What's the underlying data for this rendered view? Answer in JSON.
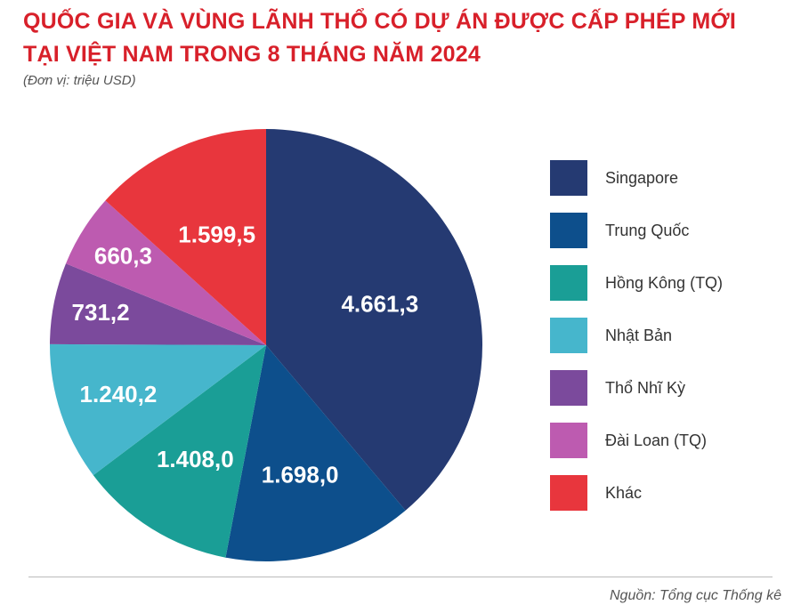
{
  "title": {
    "line1": "QUỐC GIA VÀ VÙNG LÃNH THỔ CÓ DỰ ÁN ĐƯỢC CẤP PHÉP MỚI",
    "line2": "TẠI VIỆT NAM TRONG 8 THÁNG NĂM 2024"
  },
  "unit": "(Đơn vị: triệu USD)",
  "source": "Nguồn: Tổng cục Thống kê",
  "chart_data": {
    "type": "pie",
    "title": "QUỐC GIA VÀ VÙNG LÃNH THỔ CÓ DỰ ÁN ĐƯỢC CẤP PHÉP MỚI TẠI VIỆT NAM TRONG 8 THÁNG NĂM 2024",
    "unit": "(Đơn vị: triệu USD)",
    "legend_position": "right",
    "start": "top, clockwise",
    "slices": [
      {
        "label": "Singapore",
        "value": 4661.3,
        "display": "4.661,3",
        "color": "#253a72"
      },
      {
        "label": "Trung Quốc",
        "value": 1698.0,
        "display": "1.698,0",
        "color": "#0d4f8c"
      },
      {
        "label": "Hồng Kông (TQ)",
        "value": 1408.0,
        "display": "1.408,0",
        "color": "#1a9e96"
      },
      {
        "label": "Nhật Bản",
        "value": 1240.2,
        "display": "1.240,2",
        "color": "#46b6cc"
      },
      {
        "label": "Thổ Nhĩ Kỳ",
        "value": 731.2,
        "display": "731,2",
        "color": "#7b4a9c"
      },
      {
        "label": "Đài Loan (TQ)",
        "value": 660.3,
        "display": "660,3",
        "color": "#bd5bb0"
      },
      {
        "label": "Khác",
        "value": 1599.5,
        "display": "1.599,5",
        "color": "#e8363d"
      }
    ]
  }
}
